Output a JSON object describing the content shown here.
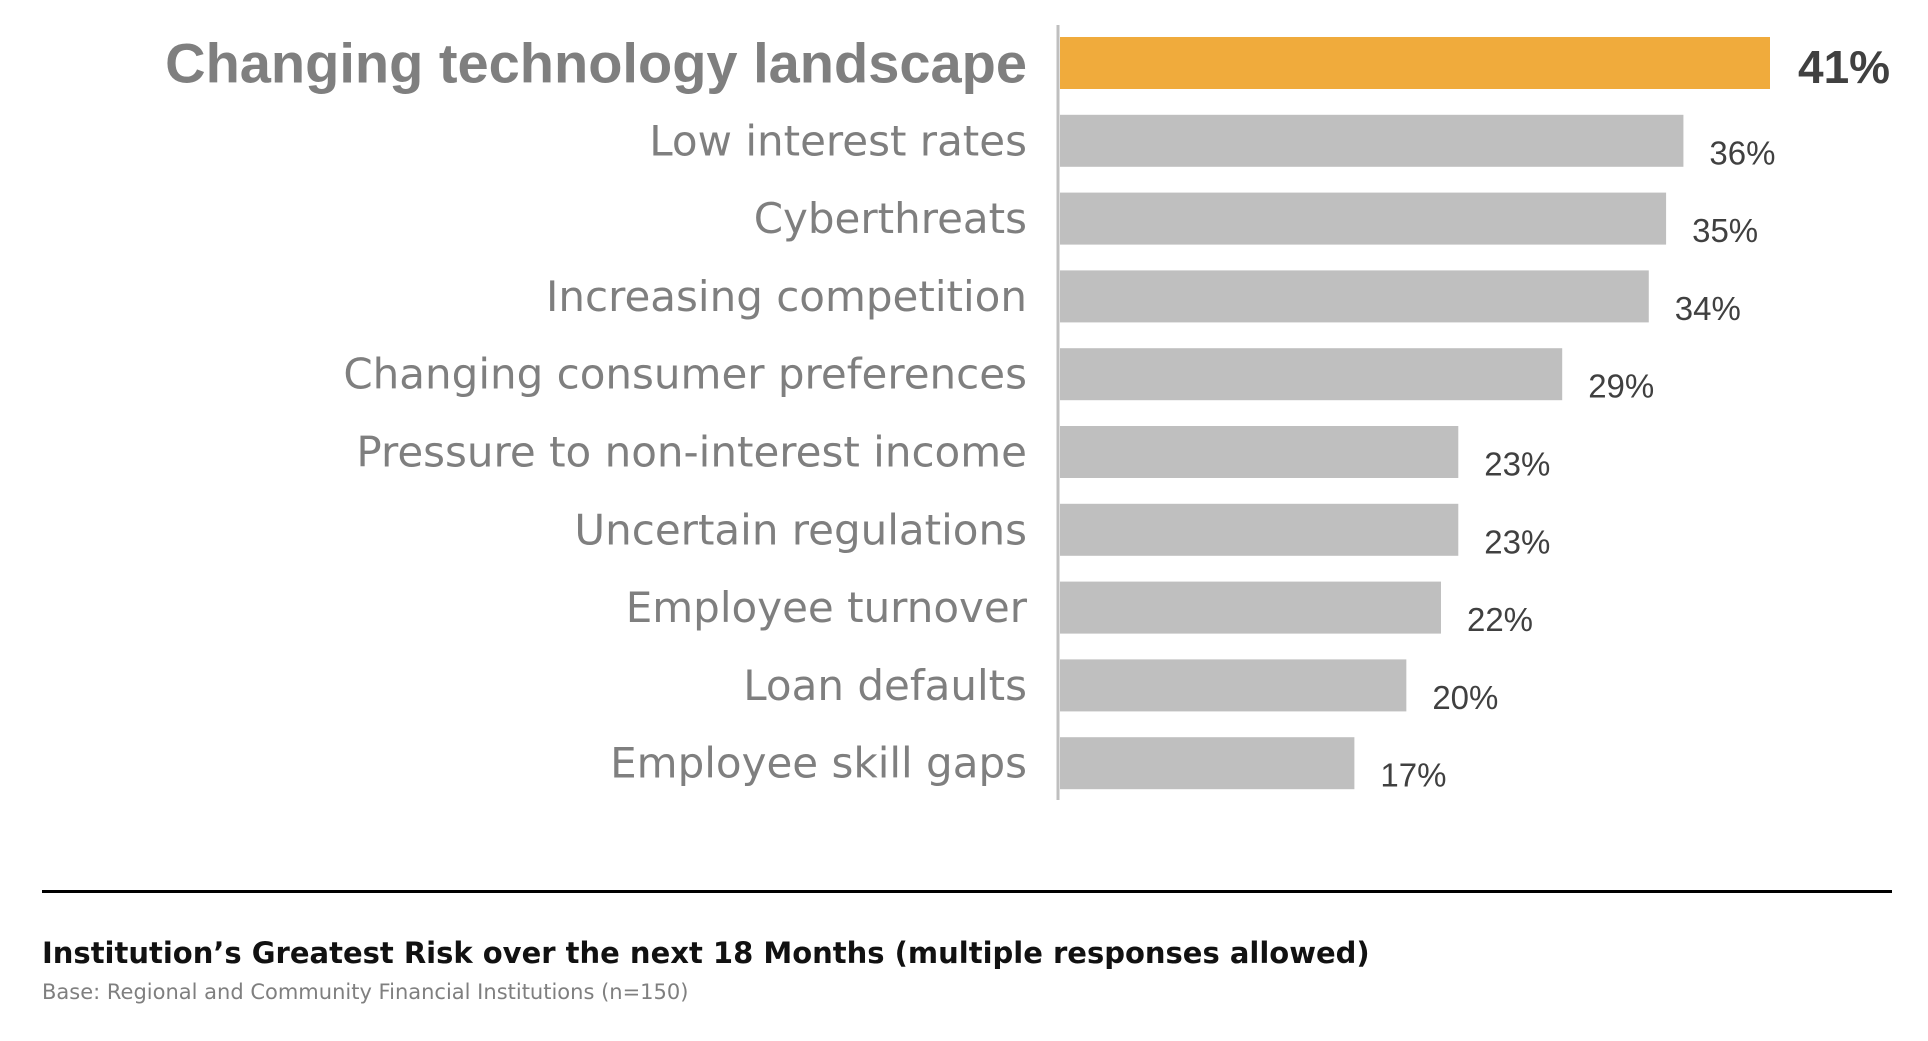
{
  "chart_data": {
    "type": "bar",
    "orientation": "horizontal",
    "categories": [
      "Changing technology landscape",
      "Low interest rates",
      "Cyberthreats",
      "Increasing competition",
      "Changing consumer preferences",
      "Pressure to non-interest income",
      "Uncertain regulations",
      "Employee turnover",
      "Loan defaults",
      "Employee skill gaps"
    ],
    "values": [
      41,
      36,
      35,
      34,
      29,
      23,
      23,
      22,
      20,
      17
    ],
    "value_labels": [
      "41%",
      "36%",
      "35%",
      "34%",
      "29%",
      "23%",
      "23%",
      "22%",
      "20%",
      "17%"
    ],
    "highlight_index": 0,
    "xlim": [
      0,
      41
    ],
    "grid": false,
    "legend": "none",
    "colors": {
      "highlight": "#f0ab3c",
      "bar": "#bfbfbf",
      "axis": "#bfbfbf",
      "label": "#7f7f7f",
      "value": "#404040"
    }
  },
  "caption": {
    "title": "Institution’s Greatest Risk over the next 18 Months (multiple responses allowed)",
    "base": "Base: Regional and Community Financial Institutions (n=150)"
  }
}
